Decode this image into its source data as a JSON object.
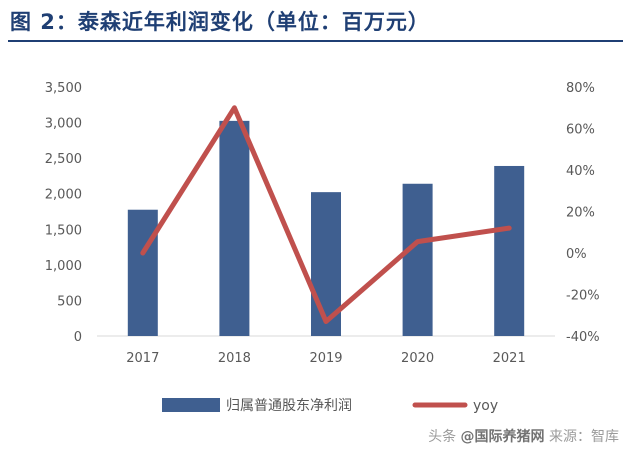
{
  "title": "图 2：泰森近年利润变化（单位：百万元）",
  "watermark": {
    "prefix": "头条",
    "handle": "@国际养猪网",
    "suffix": "来源：智库"
  },
  "chart_data": {
    "type": "bar",
    "title": "图 2：泰森近年利润变化（单位：百万元）",
    "categories": [
      "2017",
      "2018",
      "2019",
      "2020",
      "2021"
    ],
    "series": [
      {
        "name": "归属普通股东净利润",
        "type": "bar",
        "axis": "left",
        "color": "#3f5f90",
        "values": [
          1775,
          3024,
          2022,
          2140,
          2390
        ]
      },
      {
        "name": "yoy",
        "type": "line",
        "axis": "right",
        "color": "#c0504d",
        "values": [
          0.0,
          0.7,
          -0.33,
          0.055,
          0.12
        ]
      }
    ],
    "yleft": {
      "min": 0,
      "max": 3500,
      "step": 500,
      "ticks": [
        "0",
        "500",
        "1,000",
        "1,500",
        "2,000",
        "2,500",
        "3,000",
        "3,500"
      ]
    },
    "yright": {
      "min": -0.4,
      "max": 0.8,
      "step": 0.2,
      "ticks": [
        "-40%",
        "-20%",
        "0%",
        "20%",
        "40%",
        "60%",
        "80%"
      ]
    },
    "legend": {
      "placement": "bottom",
      "bar_label": "归属普通股东净利润",
      "line_label": "yoy"
    },
    "grid": false
  }
}
